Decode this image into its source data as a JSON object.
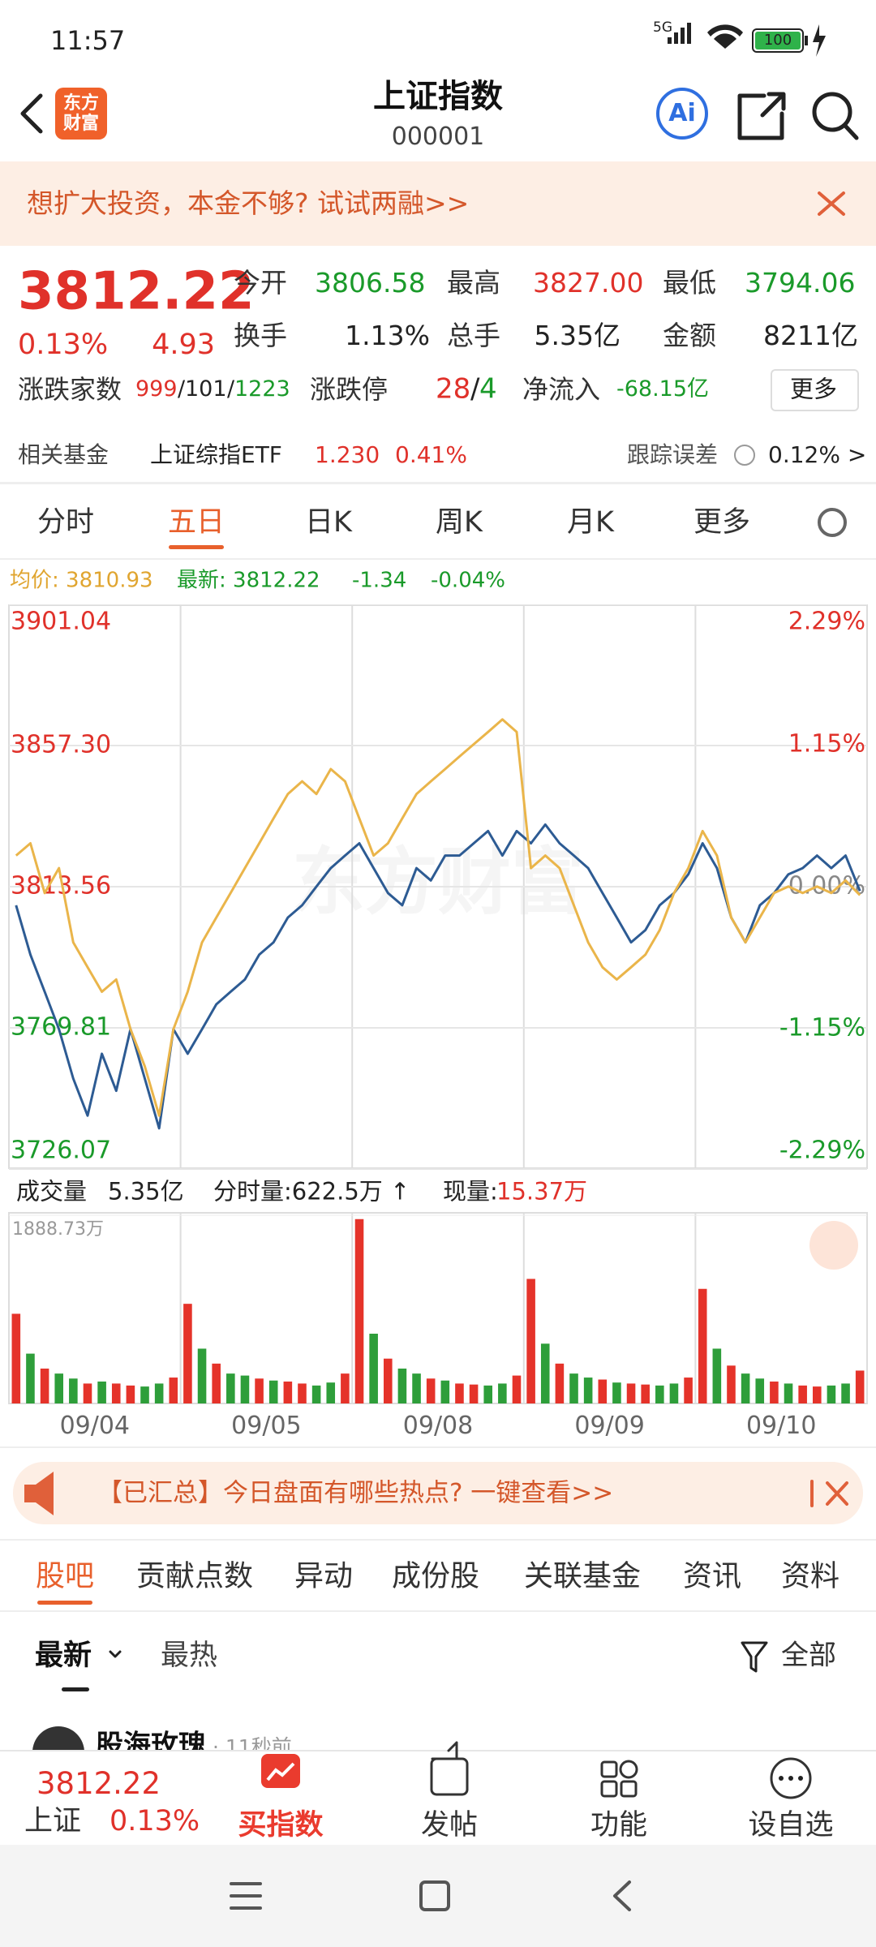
{
  "status_bar": {
    "time": "11:57",
    "network": "5G",
    "battery": "100"
  },
  "header": {
    "logo": [
      "东方",
      "财富"
    ],
    "title": "上证指数",
    "code": "000001",
    "ai": "Ai"
  },
  "banner": {
    "text": "想扩大投资，本金不够? 试试两融>>"
  },
  "quote": {
    "price": "3812.22",
    "change_pct": "0.13%",
    "change": "4.93",
    "fields": [
      {
        "label": "今开",
        "value": "3806.58"
      },
      {
        "label": "最高",
        "value": "3827.00"
      },
      {
        "label": "最低",
        "value": "3794.06"
      },
      {
        "label": "换手",
        "value": "1.13%"
      },
      {
        "label": "总手",
        "value": "5.35亿"
      },
      {
        "label": "金额",
        "value": "8211亿"
      }
    ],
    "breadth": {
      "label": "涨跌家数",
      "up": "999",
      "flat": "101",
      "down": "1223",
      "sep": "/"
    },
    "limit": {
      "label": "涨跌停",
      "up": "28",
      "down": "4",
      "sep": "/"
    },
    "inflow": {
      "label": "净流入",
      "value": "-68.15亿"
    },
    "more": "更多"
  },
  "fund": {
    "label": "相关基金",
    "name": "上证综指ETF",
    "price": "1.230",
    "pct": "0.41%",
    "tracking_label": "跟踪误差",
    "tracking_value": "0.12% >"
  },
  "chart_tabs": {
    "items": [
      "分时",
      "五日",
      "日K",
      "周K",
      "月K",
      "更多"
    ],
    "active": 1
  },
  "legend": {
    "avg": "均价: 3810.93",
    "latest": "最新: 3812.22",
    "change": "-1.34",
    "pct": "-0.04%"
  },
  "watermark": "东方财富",
  "chart_data": [
    {
      "type": "line",
      "ylim": [
        3726.07,
        3901.04
      ],
      "yticks": [
        {
          "value": 3901.04,
          "label": "3901.04"
        },
        {
          "value": 3857.3,
          "label": "3857.30"
        },
        {
          "value": 3813.56,
          "label": "3813.56"
        },
        {
          "value": 3769.81,
          "label": "3769.81"
        },
        {
          "value": 3726.07,
          "label": "3726.07"
        }
      ],
      "y2lim": [
        -2.29,
        2.29
      ],
      "y2ticks": [
        {
          "value": 2.29,
          "label": "2.29%"
        },
        {
          "value": 1.15,
          "label": "1.15%"
        },
        {
          "value": 0,
          "label": "0.00%"
        },
        {
          "value": -1.15,
          "label": "-1.15%"
        },
        {
          "value": -2.29,
          "label": "-2.29%"
        }
      ],
      "days": 5,
      "series": [
        {
          "color": "#2d5b93",
          "values": [
            3807.8,
            3792.5,
            3781.0,
            3769.4,
            3754.1,
            3742.6,
            3761.8,
            3750.3,
            3769.4,
            3754.1,
            3738.7,
            3769.4,
            3761.8,
            3769.4,
            3777.1,
            3781.0,
            3784.8,
            3792.5,
            3796.3,
            3804.0,
            3807.8,
            3813.6,
            3819.3,
            3823.2,
            3827.0,
            3819.3,
            3811.6,
            3807.8,
            3819.3,
            3815.5,
            3823.2,
            3823.2,
            3827.0,
            3830.8,
            3823.2,
            3830.8,
            3827.0,
            3832.8,
            3827.0,
            3823.2,
            3819.3,
            3811.6,
            3804.0,
            3796.3,
            3800.1,
            3807.8,
            3811.6,
            3817.4,
            3827.0,
            3819.3,
            3804.0,
            3796.3,
            3807.8,
            3811.6,
            3817.4,
            3819.3,
            3823.2,
            3819.3,
            3823.2,
            3812.22
          ]
        },
        {
          "color": "#eab54a",
          "values": [
            3823.2,
            3827.0,
            3811.6,
            3819.3,
            3796.3,
            3788.6,
            3781.0,
            3784.8,
            3769.4,
            3757.9,
            3742.6,
            3769.4,
            3781.0,
            3796.3,
            3804.0,
            3811.6,
            3819.3,
            3827.0,
            3834.7,
            3842.3,
            3846.2,
            3842.3,
            3850.0,
            3846.2,
            3834.7,
            3823.2,
            3827.0,
            3834.7,
            3842.3,
            3846.2,
            3850.0,
            3853.9,
            3857.7,
            3861.5,
            3865.4,
            3861.5,
            3819.3,
            3823.2,
            3819.3,
            3807.8,
            3796.3,
            3788.6,
            3784.8,
            3788.6,
            3792.5,
            3800.1,
            3811.6,
            3819.3,
            3830.8,
            3823.2,
            3804.0,
            3796.3,
            3804.0,
            3811.6,
            3813.6,
            3811.6,
            3813.6,
            3811.6,
            3815.5,
            3810.93
          ]
        }
      ]
    },
    {
      "type": "bar",
      "ylim": [
        0,
        1888.73
      ],
      "yticks": [
        {
          "value": 1888.73,
          "label": "1888.73万"
        }
      ],
      "day_labels": [
        "09/04",
        "09/05",
        "09/08",
        "09/09",
        "09/10"
      ],
      "values": [
        900,
        500,
        350,
        300,
        250,
        200,
        220,
        200,
        180,
        170,
        200,
        260,
        1000,
        550,
        400,
        300,
        280,
        250,
        230,
        220,
        200,
        180,
        210,
        300,
        1850,
        700,
        450,
        350,
        300,
        250,
        230,
        200,
        190,
        180,
        200,
        280,
        1250,
        600,
        400,
        300,
        260,
        240,
        210,
        200,
        190,
        180,
        200,
        260,
        1150,
        550,
        380,
        300,
        250,
        220,
        200,
        180,
        170,
        180,
        200,
        330
      ],
      "colors": [
        "#e5332a",
        "#2e9e3a",
        "#e5332a",
        "#2e9e3a",
        "#2e9e3a",
        "#e5332a",
        "#2e9e3a",
        "#e5332a",
        "#e5332a",
        "#2e9e3a",
        "#2e9e3a",
        "#e5332a",
        "#e5332a",
        "#2e9e3a",
        "#e5332a",
        "#2e9e3a",
        "#2e9e3a",
        "#e5332a",
        "#2e9e3a",
        "#e5332a",
        "#e5332a",
        "#2e9e3a",
        "#2e9e3a",
        "#e5332a",
        "#e5332a",
        "#2e9e3a",
        "#e5332a",
        "#2e9e3a",
        "#2e9e3a",
        "#e5332a",
        "#2e9e3a",
        "#e5332a",
        "#e5332a",
        "#2e9e3a",
        "#2e9e3a",
        "#e5332a",
        "#e5332a",
        "#2e9e3a",
        "#e5332a",
        "#2e9e3a",
        "#2e9e3a",
        "#e5332a",
        "#2e9e3a",
        "#e5332a",
        "#e5332a",
        "#2e9e3a",
        "#2e9e3a",
        "#e5332a",
        "#e5332a",
        "#2e9e3a",
        "#e5332a",
        "#2e9e3a",
        "#2e9e3a",
        "#e5332a",
        "#2e9e3a",
        "#e5332a",
        "#e5332a",
        "#2e9e3a",
        "#2e9e3a",
        "#e5332a"
      ]
    }
  ],
  "volume_header": {
    "label": "成交量",
    "total": "5.35亿",
    "minute": "分时量:622.5万 ↑",
    "now_label": "现量:",
    "now_value": "15.37万"
  },
  "notice": {
    "text": "【已汇总】今日盘面有哪些热点? 一键查看>>"
  },
  "section_tabs": {
    "items": [
      "股吧",
      "贡献点数",
      "异动",
      "成份股",
      "关联基金",
      "资讯",
      "资料"
    ],
    "active": 0
  },
  "sort_tabs": {
    "items": [
      "最新",
      "最热"
    ],
    "filter": "全部"
  },
  "post": {
    "author": "股海玫瑰",
    "time": "· 11秒前"
  },
  "bottom_bar": {
    "price": "3812.22",
    "name": "上证",
    "pct": "0.13%",
    "items": [
      "买指数",
      "发帖",
      "功能",
      "设自选"
    ]
  }
}
